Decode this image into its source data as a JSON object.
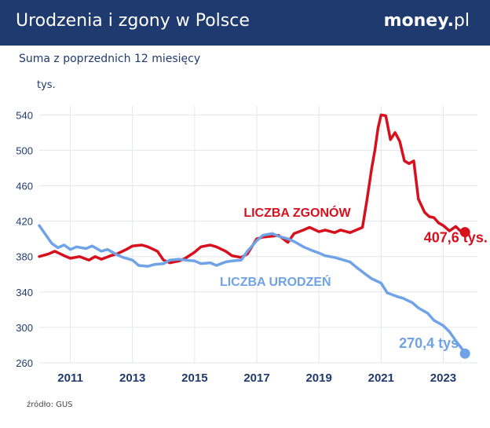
{
  "header": {
    "title": "Urodzenia i zgony w Polsce",
    "logo_text": "money",
    "logo_dot": ".",
    "logo_suffix": "pl"
  },
  "subtitle": "Suma z poprzednich 12 miesięcy",
  "source": "źródło: GUS",
  "colors": {
    "header_bg": "#1f3a6e",
    "deaths": "#d7101e",
    "births": "#6fa3e6",
    "axis_text": "#1f3a6e"
  },
  "chart_data": {
    "type": "line",
    "ylabel": "tys.",
    "ylim": [
      260,
      550
    ],
    "yticks": [
      260,
      300,
      340,
      380,
      420,
      460,
      500,
      540
    ],
    "xlim": [
      2010.0,
      2024.1
    ],
    "xticks": [
      2011,
      2013,
      2015,
      2017,
      2019,
      2021,
      2023
    ],
    "grid": true,
    "series": [
      {
        "name": "LICZBA ZGONÓW",
        "color": "#d7101e",
        "end_label": "407,6 tys.",
        "x": [
          2010.0,
          2010.3,
          2010.5,
          2010.8,
          2011.0,
          2011.3,
          2011.6,
          2011.8,
          2012.0,
          2012.3,
          2012.5,
          2012.8,
          2013.0,
          2013.3,
          2013.5,
          2013.8,
          2014.0,
          2014.2,
          2014.5,
          2014.7,
          2015.0,
          2015.2,
          2015.5,
          2015.7,
          2016.0,
          2016.2,
          2016.5,
          2016.7,
          2017.0,
          2017.2,
          2017.5,
          2017.7,
          2018.0,
          2018.2,
          2018.5,
          2018.7,
          2019.0,
          2019.2,
          2019.5,
          2019.7,
          2020.0,
          2020.2,
          2020.4,
          2020.55,
          2020.7,
          2020.8,
          2020.9,
          2021.0,
          2021.15,
          2021.3,
          2021.45,
          2021.6,
          2021.75,
          2021.9,
          2022.05,
          2022.2,
          2022.4,
          2022.55,
          2022.7,
          2022.85,
          2023.0,
          2023.2,
          2023.4,
          2023.55,
          2023.7
        ],
        "y": [
          380,
          383,
          386,
          381,
          378,
          380,
          376,
          380,
          377,
          381,
          383,
          388,
          392,
          393,
          391,
          386,
          376,
          373,
          375,
          378,
          385,
          391,
          393,
          391,
          386,
          381,
          379,
          383,
          400,
          402,
          403,
          404,
          396,
          406,
          410,
          413,
          408,
          410,
          407,
          410,
          407,
          410,
          413,
          445,
          480,
          500,
          525,
          540,
          539,
          512,
          520,
          510,
          488,
          485,
          488,
          445,
          430,
          425,
          424,
          418,
          415,
          409,
          414,
          409,
          407.6
        ]
      },
      {
        "name": "LICZBA URODZEŃ",
        "color": "#6fa3e6",
        "end_label": "270,4 tys.",
        "x": [
          2010.0,
          2010.2,
          2010.4,
          2010.6,
          2010.8,
          2011.0,
          2011.2,
          2011.5,
          2011.7,
          2012.0,
          2012.2,
          2012.5,
          2012.7,
          2013.0,
          2013.2,
          2013.5,
          2013.7,
          2014.0,
          2014.2,
          2014.5,
          2014.7,
          2015.0,
          2015.2,
          2015.5,
          2015.7,
          2016.0,
          2016.2,
          2016.5,
          2016.7,
          2017.0,
          2017.2,
          2017.5,
          2017.7,
          2018.0,
          2018.2,
          2018.5,
          2018.7,
          2019.0,
          2019.2,
          2019.5,
          2019.7,
          2020.0,
          2020.2,
          2020.5,
          2020.7,
          2021.0,
          2021.2,
          2021.5,
          2021.7,
          2022.0,
          2022.2,
          2022.5,
          2022.7,
          2023.0,
          2023.2,
          2023.4,
          2023.6,
          2023.7
        ],
        "y": [
          415,
          405,
          395,
          390,
          393,
          388,
          391,
          389,
          392,
          386,
          388,
          382,
          379,
          376,
          370,
          369,
          371,
          372,
          376,
          377,
          376,
          375,
          372,
          373,
          370,
          374,
          375,
          376,
          386,
          398,
          404,
          406,
          403,
          400,
          397,
          391,
          388,
          384,
          381,
          379,
          377,
          374,
          368,
          360,
          355,
          350,
          339,
          335,
          333,
          328,
          322,
          316,
          308,
          302,
          295,
          285,
          276,
          270.4
        ]
      }
    ]
  }
}
